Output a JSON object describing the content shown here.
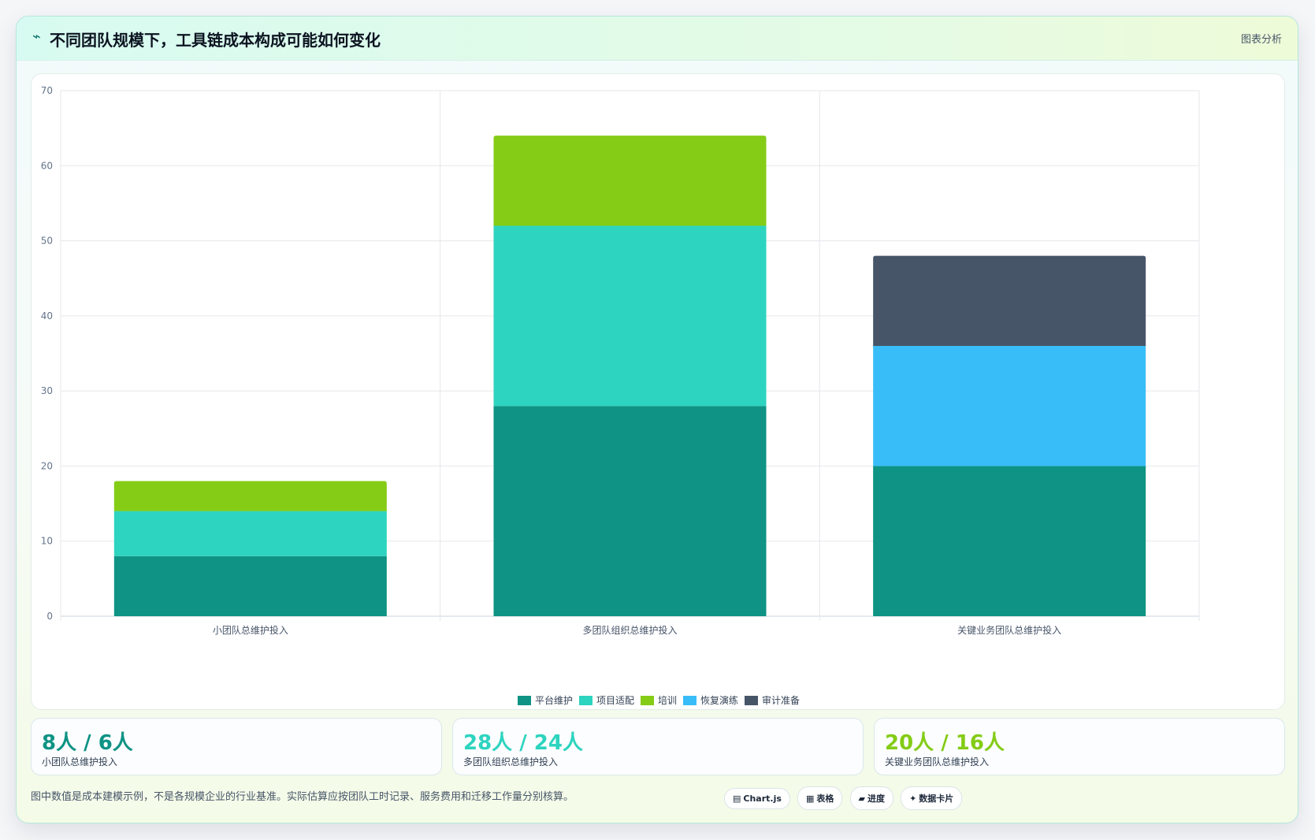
{
  "header": {
    "icon": "trend-icon",
    "title": "不同团队规模下，工具链成本构成可能如何变化",
    "tag": "图表分析"
  },
  "chart_data": {
    "type": "bar",
    "stacked": true,
    "categories": [
      "小团队总维护投入",
      "多团队组织总维护投入",
      "关键业务团队总维护投入"
    ],
    "series": [
      {
        "name": "平台维护",
        "color": "#0e9384",
        "values": [
          8,
          28,
          20
        ]
      },
      {
        "name": "项目适配",
        "color": "#2dd4bf",
        "values": [
          6,
          24,
          0
        ]
      },
      {
        "name": "培训",
        "color": "#84cc16",
        "values": [
          4,
          12,
          0
        ]
      },
      {
        "name": "恢复演练",
        "color": "#38bdf8",
        "values": [
          0,
          0,
          16
        ]
      },
      {
        "name": "审计准备",
        "color": "#475569",
        "values": [
          0,
          0,
          12
        ]
      }
    ],
    "ylim": [
      0,
      70
    ],
    "yticks": [
      0,
      10,
      20,
      30,
      40,
      50,
      60,
      70
    ],
    "grid": true,
    "legend_position": "bottom"
  },
  "kpis": [
    {
      "value": "8人 / 6人",
      "label": "小团队总维护投入",
      "color": "#0e9384"
    },
    {
      "value": "28人 / 24人",
      "label": "多团队组织总维护投入",
      "color": "#2dd4bf"
    },
    {
      "value": "20人 / 16人",
      "label": "关键业务团队总维护投入",
      "color": "#84cc16"
    }
  ],
  "footer": {
    "note": "图中数值是成本建模示例，不是各规模企业的行业基准。实际估算应按团队工时记录、服务费用和迁移工作量分别核算。",
    "chips": [
      {
        "icon": "chart-icon",
        "glyph": "▤",
        "label": "Chart.js"
      },
      {
        "icon": "table-icon",
        "glyph": "▦",
        "label": "表格"
      },
      {
        "icon": "progress-icon",
        "glyph": "▰",
        "label": "进度"
      },
      {
        "icon": "sparkle-icon",
        "glyph": "✦",
        "label": "数据卡片"
      }
    ]
  }
}
